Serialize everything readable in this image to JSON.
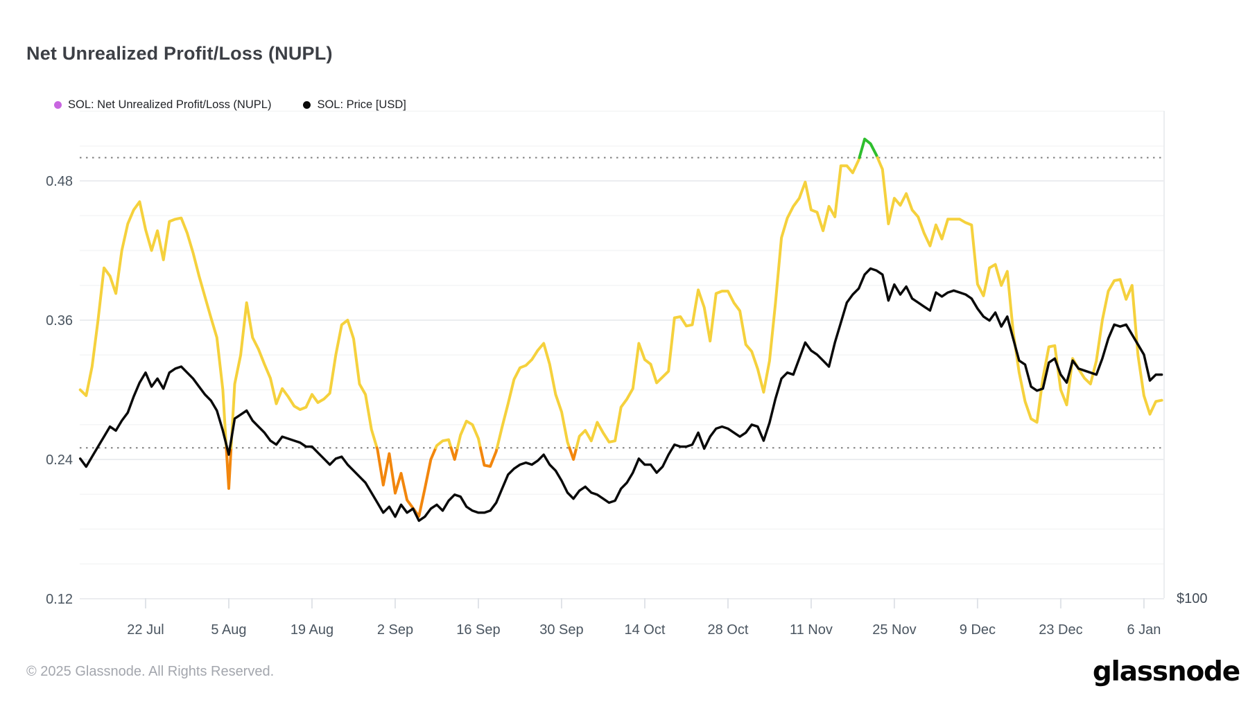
{
  "page": {
    "title": "Net Unrealized Profit/Loss (NUPL)",
    "footer": "© 2025 Glassnode. All Rights Reserved.",
    "brand": "glassnode"
  },
  "legend": [
    {
      "label": "SOL: Net Unrealized Profit/Loss (NUPL)",
      "color": "#c866e0"
    },
    {
      "label": "SOL: Price [USD]",
      "color": "#0a0a0a"
    }
  ],
  "chart_data": {
    "type": "line",
    "title": "Net Unrealized Profit/Loss (NUPL)",
    "start_date": "2024-07-11",
    "end_date": "2025-01-09",
    "frequency": "daily",
    "grid": "on",
    "legend_position": "top-left",
    "y_axis": {
      "side": "left",
      "tick_labels": [
        "0.48",
        "0.36",
        "0.24",
        "0.12"
      ],
      "tick_values": [
        0.48,
        0.36,
        0.24,
        0.12
      ],
      "minor_step": 0.03,
      "range": [
        0.12,
        0.54
      ]
    },
    "thresholds": [
      0.25,
      0.5
    ],
    "right_axis": {
      "label": "$100",
      "anchor_value": 100,
      "usd_per_left_unit": 580
    },
    "x_ticks": [
      {
        "label": "22 Jul",
        "day": 11
      },
      {
        "label": "5 Aug",
        "day": 25
      },
      {
        "label": "19 Aug",
        "day": 39
      },
      {
        "label": "2 Sep",
        "day": 53
      },
      {
        "label": "16 Sep",
        "day": 67
      },
      {
        "label": "30 Sep",
        "day": 81
      },
      {
        "label": "14 Oct",
        "day": 95
      },
      {
        "label": "28 Oct",
        "day": 109
      },
      {
        "label": "11 Nov",
        "day": 123
      },
      {
        "label": "25 Nov",
        "day": 137
      },
      {
        "label": "9 Dec",
        "day": 151
      },
      {
        "label": "23 Dec",
        "day": 165
      },
      {
        "label": "6 Jan",
        "day": 179
      }
    ],
    "colors": {
      "nupl_yellow": "#f5d13d",
      "nupl_orange": "#f2860d",
      "nupl_green": "#2ebe2e",
      "price_black": "#0a0a0a",
      "threshold_dotted": "#7d7d7d",
      "grid_minor": "#f4f5f6",
      "grid_major": "#ebedf0",
      "axis_text": "#4a5560"
    },
    "color_rules": {
      "orange_below": 0.25,
      "yellow_between": [
        0.25,
        0.5
      ],
      "green_above": 0.5
    },
    "series": [
      {
        "name": "SOL: Net Unrealized Profit/Loss (NUPL)",
        "axis": "left",
        "values": [
          0.3,
          0.295,
          0.32,
          0.36,
          0.405,
          0.398,
          0.383,
          0.42,
          0.443,
          0.455,
          0.462,
          0.438,
          0.42,
          0.437,
          0.412,
          0.445,
          0.447,
          0.448,
          0.435,
          0.418,
          0.398,
          0.38,
          0.362,
          0.345,
          0.3,
          0.215,
          0.305,
          0.33,
          0.375,
          0.345,
          0.335,
          0.322,
          0.31,
          0.288,
          0.301,
          0.294,
          0.286,
          0.283,
          0.285,
          0.296,
          0.289,
          0.292,
          0.297,
          0.33,
          0.356,
          0.36,
          0.344,
          0.305,
          0.296,
          0.266,
          0.249,
          0.218,
          0.245,
          0.211,
          0.228,
          0.205,
          0.198,
          0.191,
          0.215,
          0.24,
          0.252,
          0.256,
          0.257,
          0.24,
          0.261,
          0.273,
          0.27,
          0.258,
          0.235,
          0.234,
          0.247,
          0.268,
          0.288,
          0.309,
          0.319,
          0.321,
          0.326,
          0.334,
          0.34,
          0.322,
          0.296,
          0.281,
          0.255,
          0.24,
          0.26,
          0.265,
          0.256,
          0.272,
          0.263,
          0.255,
          0.256,
          0.285,
          0.292,
          0.301,
          0.34,
          0.326,
          0.322,
          0.306,
          0.311,
          0.316,
          0.362,
          0.363,
          0.355,
          0.356,
          0.386,
          0.371,
          0.342,
          0.383,
          0.385,
          0.385,
          0.375,
          0.368,
          0.339,
          0.333,
          0.318,
          0.298,
          0.325,
          0.375,
          0.431,
          0.448,
          0.458,
          0.465,
          0.479,
          0.455,
          0.453,
          0.437,
          0.458,
          0.449,
          0.493,
          0.493,
          0.487,
          0.498,
          0.516,
          0.512,
          0.502,
          0.49,
          0.443,
          0.465,
          0.459,
          0.469,
          0.455,
          0.449,
          0.435,
          0.424,
          0.442,
          0.43,
          0.447,
          0.447,
          0.447,
          0.444,
          0.442,
          0.391,
          0.381,
          0.405,
          0.408,
          0.39,
          0.402,
          0.35,
          0.315,
          0.29,
          0.275,
          0.272,
          0.31,
          0.337,
          0.338,
          0.3,
          0.287,
          0.327,
          0.318,
          0.31,
          0.305,
          0.325,
          0.36,
          0.385,
          0.394,
          0.395,
          0.378,
          0.39,
          0.33,
          0.295,
          0.279,
          0.29,
          0.291
        ]
      },
      {
        "name": "SOL: Price [USD]",
        "axis": "right",
        "values": [
          170,
          166,
          171,
          176,
          181,
          186,
          184,
          189,
          193,
          201,
          208,
          213,
          206,
          210,
          205,
          213,
          215,
          216,
          213,
          210,
          206,
          202,
          199,
          194,
          184,
          172,
          190,
          192,
          194,
          189,
          186,
          183,
          179,
          177,
          181,
          180,
          179,
          178,
          176,
          176,
          173,
          170,
          167,
          170,
          171,
          167,
          164,
          161,
          158,
          153,
          148,
          143,
          146,
          141,
          147,
          143,
          145,
          139,
          141,
          145,
          147,
          144,
          149,
          152,
          151,
          146,
          144,
          143,
          143,
          144,
          148,
          155,
          162,
          165,
          167,
          168,
          167,
          169,
          172,
          167,
          164,
          159,
          153,
          150,
          154,
          156,
          153,
          152,
          150,
          148,
          149,
          155,
          158,
          163,
          170,
          167,
          167,
          163,
          166,
          172,
          177,
          176,
          176,
          177,
          183,
          175,
          181,
          185,
          186,
          185,
          183,
          181,
          183,
          187,
          186,
          179,
          188,
          200,
          210,
          213,
          212,
          220,
          228,
          224,
          222,
          219,
          216,
          228,
          238,
          248,
          252,
          255,
          262,
          265,
          264,
          262,
          249,
          257,
          252,
          256,
          250,
          248,
          246,
          244,
          253,
          251,
          253,
          254,
          253,
          252,
          250,
          245,
          241,
          239,
          243,
          236,
          241,
          230,
          219,
          217,
          206,
          204,
          205,
          218,
          220,
          212,
          208,
          219,
          215,
          214,
          213,
          212,
          220,
          230,
          237,
          236,
          237,
          232,
          227,
          222,
          209,
          212,
          212
        ]
      }
    ]
  }
}
